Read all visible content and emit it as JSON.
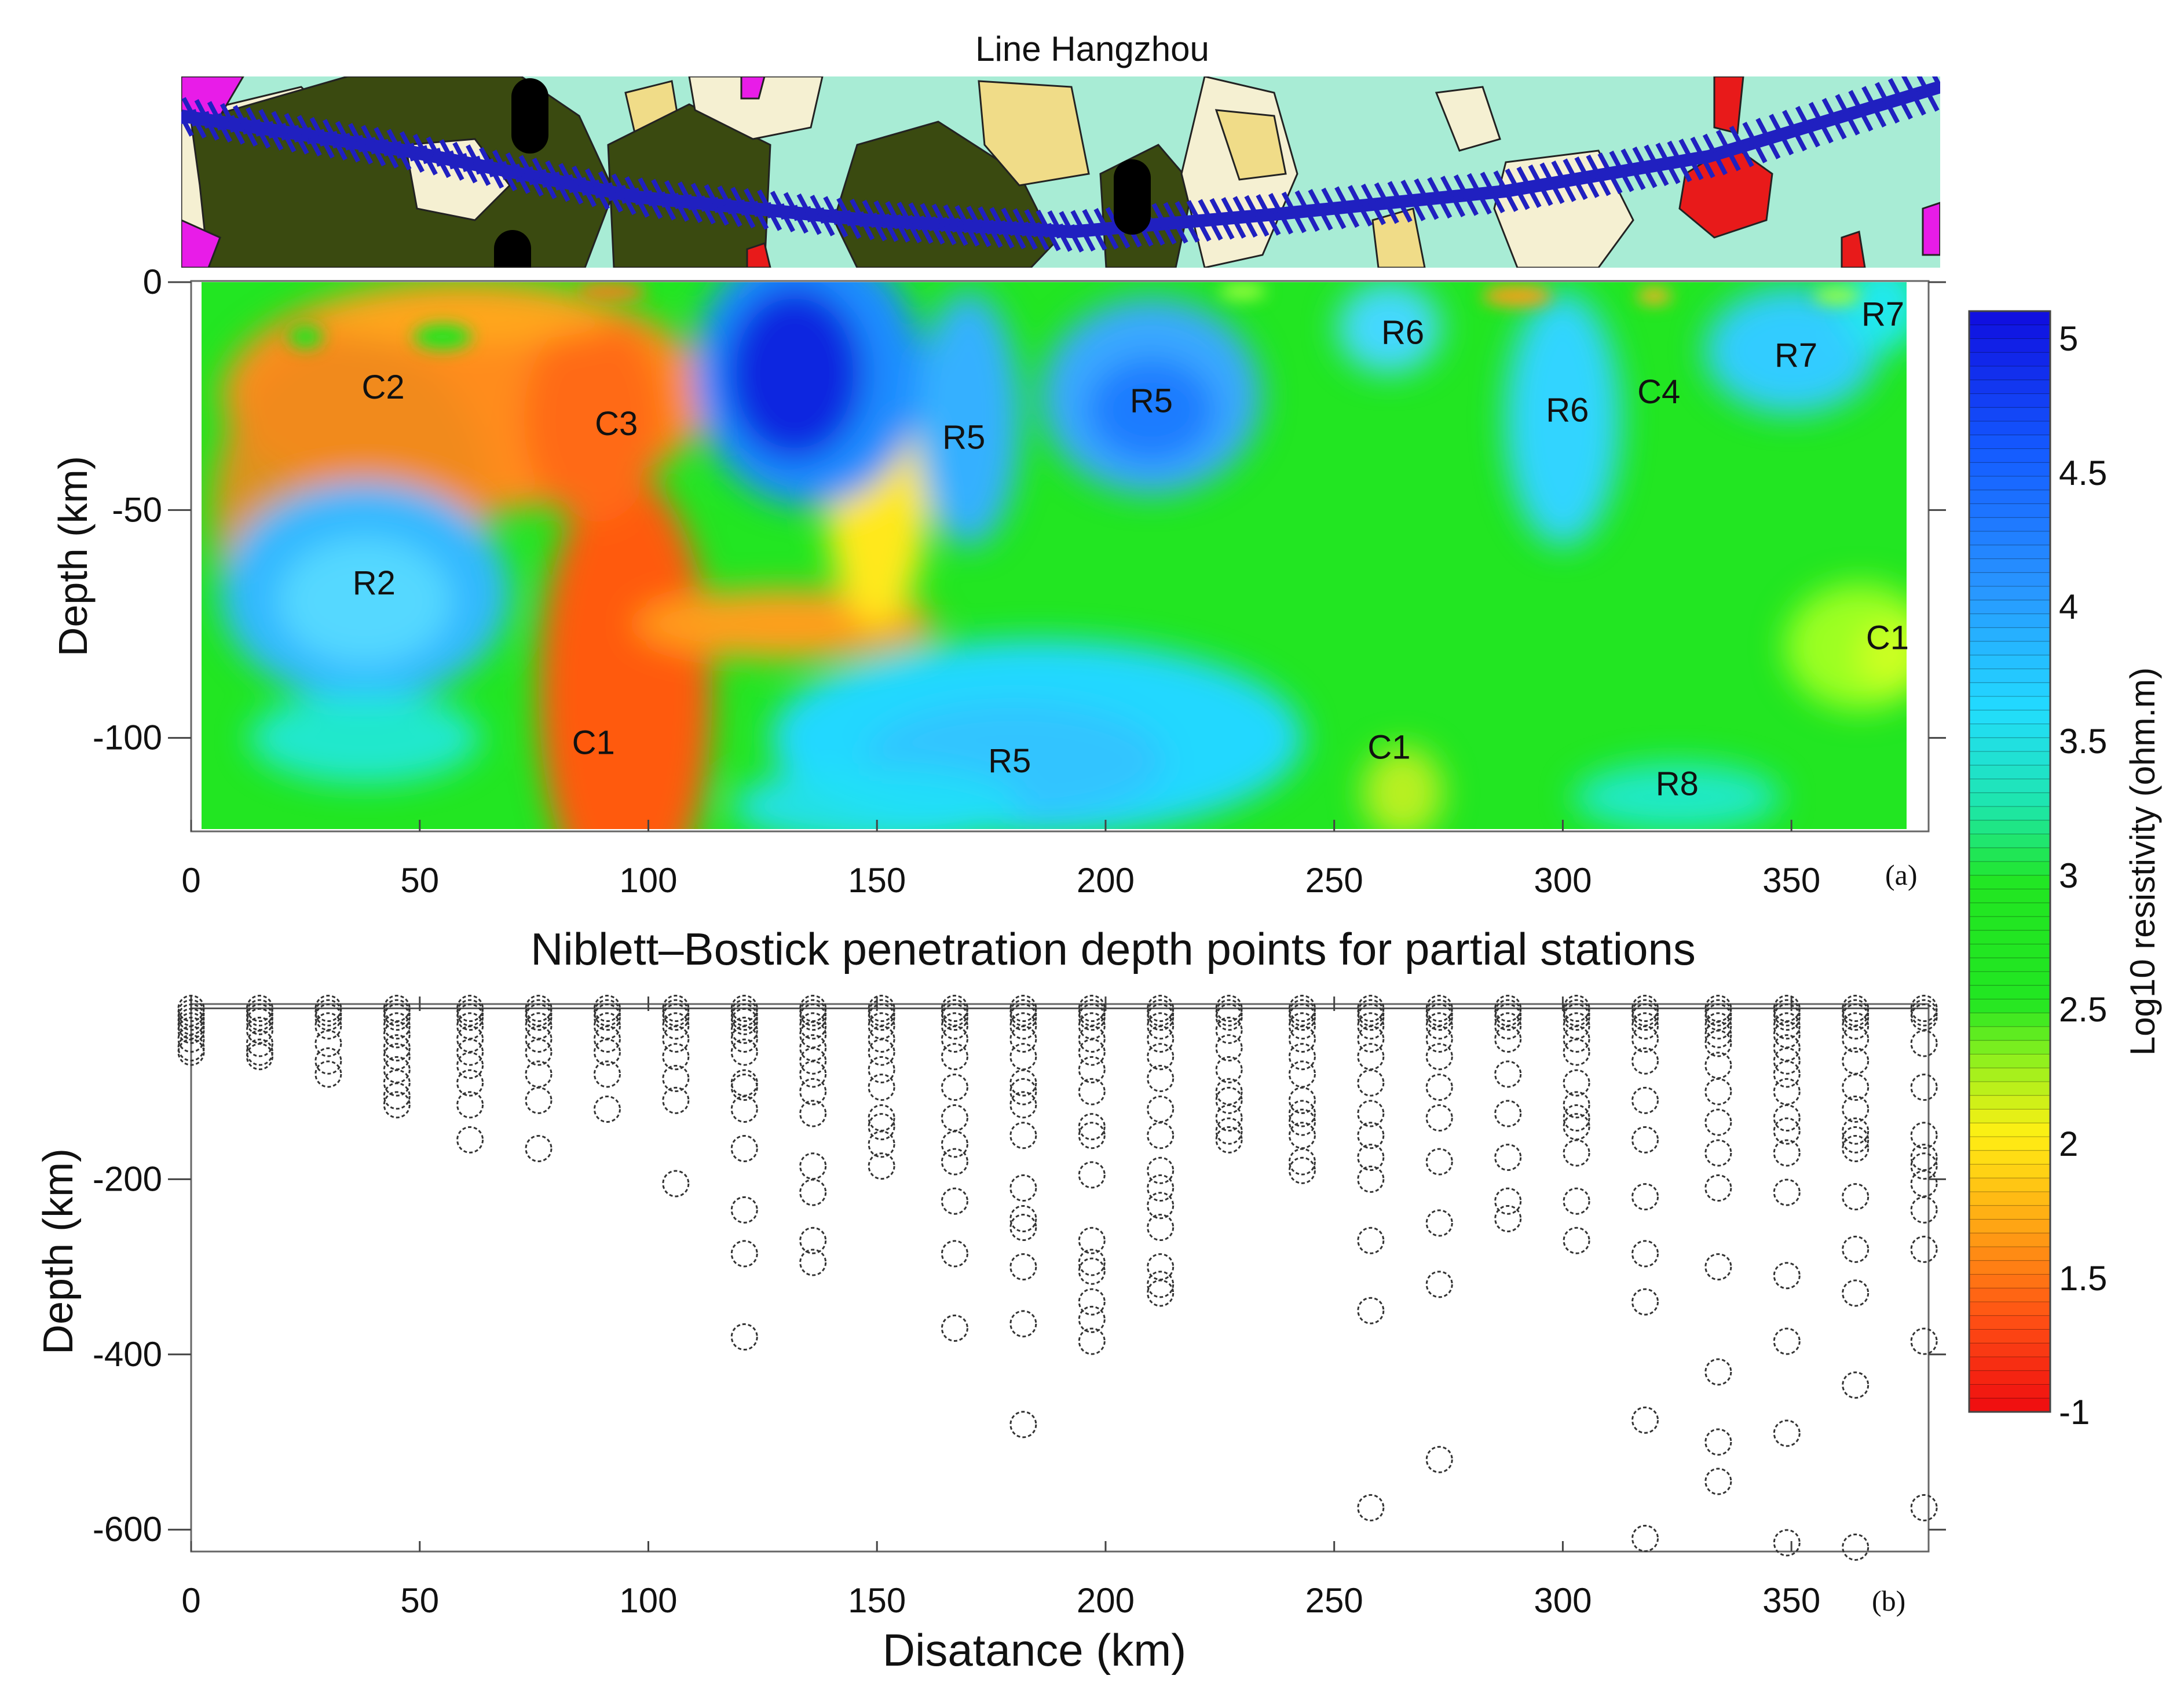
{
  "map_strip": {
    "title": "Line Hangzhou",
    "colors": {
      "base": "#a8ecd5",
      "dark_unit": "#3a4a10",
      "cream_unit": "#f5f0d2",
      "yellow_unit": "#f0dc88",
      "magenta_unit": "#e81ce8",
      "red_unit": "#e81a1a",
      "station_marks": "#2020c0",
      "black_marks": "#000000"
    }
  },
  "panel_a": {
    "label": "(a)",
    "ylabel": "Depth (km)",
    "xlim": [
      0,
      380
    ],
    "ylim": [
      -120,
      0
    ],
    "x_ticks": [
      "0",
      "50",
      "100",
      "150",
      "200",
      "250",
      "300",
      "350"
    ],
    "y_ticks": [
      "0",
      "-50",
      "-100"
    ],
    "anomaly_labels": [
      {
        "text": "C2",
        "x": 42,
        "y": -23
      },
      {
        "text": "C3",
        "x": 93,
        "y": -31
      },
      {
        "text": "R2",
        "x": 40,
        "y": -66
      },
      {
        "text": "C1",
        "x": 88,
        "y": -101
      },
      {
        "text": "R5",
        "x": 169,
        "y": -34
      },
      {
        "text": "R5",
        "x": 210,
        "y": -26
      },
      {
        "text": "R5",
        "x": 179,
        "y": -105
      },
      {
        "text": "R6",
        "x": 265,
        "y": -11
      },
      {
        "text": "R6",
        "x": 301,
        "y": -28
      },
      {
        "text": "C4",
        "x": 321,
        "y": -24
      },
      {
        "text": "R7",
        "x": 351,
        "y": -16
      },
      {
        "text": "R7",
        "x": 370,
        "y": -7
      },
      {
        "text": "C1",
        "x": 262,
        "y": -102
      },
      {
        "text": "C1",
        "x": 371,
        "y": -78
      },
      {
        "text": "R8",
        "x": 325,
        "y": -110
      }
    ]
  },
  "colorbar": {
    "label": "Log10 resistivity (ohm.m)",
    "ticks": [
      "5",
      "4.5",
      "4",
      "3.5",
      "3",
      "2.5",
      "2",
      "1.5",
      "-1"
    ]
  },
  "chart_data": {
    "type": "scatter",
    "title": "Niblett–Bostick penetration depth points for partial stations",
    "xlabel": "Disatance (km)",
    "ylabel": "Depth (km)",
    "label": "(b)",
    "xlim": [
      0,
      380
    ],
    "ylim": [
      -625,
      0
    ],
    "x_ticks": [
      "0",
      "50",
      "100",
      "150",
      "200",
      "250",
      "300",
      "350"
    ],
    "y_ticks": [
      "-200",
      "-400",
      "-600"
    ],
    "grid": false,
    "marker": "open-circle-dashed",
    "stations": [
      {
        "x": 0,
        "depths": [
          -5,
          -10,
          -15,
          -20,
          -25,
          -30,
          -40,
          -50,
          -55
        ]
      },
      {
        "x": 15,
        "depths": [
          -5,
          -10,
          -15,
          -20,
          -30,
          -45,
          -55,
          -60
        ]
      },
      {
        "x": 30,
        "depths": [
          -5,
          -10,
          -15,
          -25,
          -45,
          -65,
          -80
        ]
      },
      {
        "x": 45,
        "depths": [
          -5,
          -10,
          -15,
          -25,
          -35,
          -50,
          -60,
          -75,
          -90,
          -105,
          -115
        ]
      },
      {
        "x": 61,
        "depths": [
          -5,
          -10,
          -15,
          -25,
          -40,
          -55,
          -70,
          -90,
          -115,
          -155
        ]
      },
      {
        "x": 76,
        "depths": [
          -5,
          -10,
          -15,
          -25,
          -40,
          -55,
          -80,
          -110,
          -165
        ]
      },
      {
        "x": 91,
        "depths": [
          -5,
          -10,
          -15,
          -25,
          -40,
          -55,
          -80,
          -120
        ]
      },
      {
        "x": 106,
        "depths": [
          -5,
          -10,
          -15,
          -25,
          -40,
          -60,
          -85,
          -110,
          -205
        ]
      },
      {
        "x": 121,
        "depths": [
          -5,
          -10,
          -15,
          -20,
          -30,
          -40,
          -55,
          -90,
          -95,
          -120,
          -165,
          -235,
          -285,
          -380
        ]
      },
      {
        "x": 136,
        "depths": [
          -5,
          -10,
          -15,
          -25,
          -35,
          -50,
          -65,
          -80,
          -100,
          -125,
          -185,
          -215,
          -270,
          -295
        ]
      },
      {
        "x": 151,
        "depths": [
          -5,
          -10,
          -15,
          -25,
          -40,
          -55,
          -75,
          -95,
          -130,
          -140,
          -160,
          -185
        ]
      },
      {
        "x": 167,
        "depths": [
          -5,
          -10,
          -15,
          -25,
          -40,
          -60,
          -95,
          -130,
          -160,
          -180,
          -225,
          -285,
          -370
        ]
      },
      {
        "x": 182,
        "depths": [
          -5,
          -10,
          -15,
          -25,
          -40,
          -60,
          -90,
          -100,
          -115,
          -150,
          -210,
          -245,
          -255,
          -300,
          -365,
          -480
        ]
      },
      {
        "x": 197,
        "depths": [
          -5,
          -10,
          -15,
          -25,
          -40,
          -55,
          -75,
          -100,
          -140,
          -150,
          -195,
          -270,
          -295,
          -305,
          -340,
          -360,
          -385
        ]
      },
      {
        "x": 212,
        "depths": [
          -5,
          -10,
          -15,
          -25,
          -40,
          -60,
          -85,
          -120,
          -150,
          -190,
          -210,
          -230,
          -255,
          -300,
          -320,
          -330
        ]
      },
      {
        "x": 227,
        "depths": [
          -5,
          -10,
          -15,
          -30,
          -50,
          -75,
          -100,
          -110,
          -130,
          -145,
          -155
        ]
      },
      {
        "x": 243,
        "depths": [
          -5,
          -10,
          -15,
          -25,
          -40,
          -60,
          -80,
          -110,
          -125,
          -135,
          -150,
          -180,
          -190
        ]
      },
      {
        "x": 258,
        "depths": [
          -5,
          -10,
          -15,
          -25,
          -40,
          -60,
          -90,
          -125,
          -150,
          -175,
          -200,
          -270,
          -350,
          -575
        ]
      },
      {
        "x": 273,
        "depths": [
          -5,
          -10,
          -15,
          -25,
          -40,
          -60,
          -95,
          -130,
          -180,
          -250,
          -320,
          -520
        ]
      },
      {
        "x": 288,
        "depths": [
          -5,
          -10,
          -15,
          -25,
          -40,
          -80,
          -125,
          -175,
          -225,
          -245
        ]
      },
      {
        "x": 303,
        "depths": [
          -5,
          -10,
          -15,
          -25,
          -40,
          -55,
          -90,
          -115,
          -130,
          -140,
          -170,
          -225,
          -270
        ]
      },
      {
        "x": 318,
        "depths": [
          -5,
          -10,
          -15,
          -25,
          -40,
          -65,
          -110,
          -155,
          -220,
          -285,
          -340,
          -475,
          -610
        ]
      },
      {
        "x": 334,
        "depths": [
          -5,
          -10,
          -15,
          -25,
          -35,
          -45,
          -70,
          -100,
          -135,
          -170,
          -210,
          -300,
          -420,
          -500,
          -545
        ]
      },
      {
        "x": 349,
        "depths": [
          -5,
          -10,
          -15,
          -25,
          -35,
          -50,
          -65,
          -80,
          -100,
          -130,
          -145,
          -170,
          -215,
          -310,
          -385,
          -490,
          -615
        ]
      },
      {
        "x": 364,
        "depths": [
          -5,
          -10,
          -15,
          -25,
          -40,
          -65,
          -95,
          -120,
          -145,
          -155,
          -165,
          -220,
          -280,
          -330,
          -435,
          -620
        ]
      },
      {
        "x": 379,
        "depths": [
          -5,
          -10,
          -15,
          -45,
          -95,
          -150,
          -175,
          -185,
          -205,
          -235,
          -280,
          -385,
          -575
        ]
      }
    ]
  }
}
